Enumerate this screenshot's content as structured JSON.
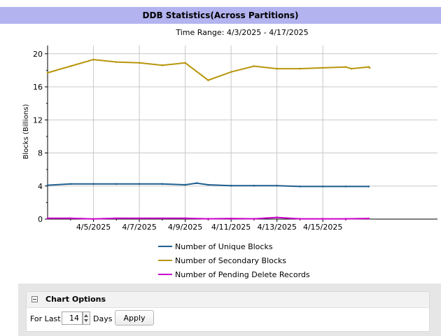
{
  "header": {
    "title": "DDB Statistics(Across Partitions)"
  },
  "chart_data": {
    "type": "line",
    "subtitle": "Time Range: 4/3/2025 - 4/17/2025",
    "ylabel": "Blocks (Billions)",
    "xlabel": "",
    "ylim": [
      0,
      21
    ],
    "yticks": [
      0,
      4,
      8,
      12,
      16,
      20
    ],
    "xlim": [
      "2025-04-03",
      "2025-04-20"
    ],
    "xticks": [
      {
        "date": "2025-04-04",
        "label": ""
      },
      {
        "date": "2025-04-05",
        "label": "4/5/2025"
      },
      {
        "date": "2025-04-06",
        "label": ""
      },
      {
        "date": "2025-04-07",
        "label": "4/7/2025"
      },
      {
        "date": "2025-04-08",
        "label": ""
      },
      {
        "date": "2025-04-09",
        "label": "4/9/2025"
      },
      {
        "date": "2025-04-10",
        "label": ""
      },
      {
        "date": "2025-04-11",
        "label": "4/11/2025"
      },
      {
        "date": "2025-04-12",
        "label": ""
      },
      {
        "date": "2025-04-13",
        "label": "4/13/2025"
      },
      {
        "date": "2025-04-14",
        "label": ""
      },
      {
        "date": "2025-04-15",
        "label": "4/15/2025"
      },
      {
        "date": "2025-04-16",
        "label": ""
      }
    ],
    "grid": true,
    "legend_position": "bottom",
    "series": [
      {
        "name": "Number of Unique Blocks",
        "color": "#1f5f8f",
        "x": [
          "2025-04-03",
          "2025-04-04",
          "2025-04-05",
          "2025-04-06",
          "2025-04-07",
          "2025-04-08",
          "2025-04-09",
          "2025-04-09T12:00",
          "2025-04-10",
          "2025-04-11",
          "2025-04-12",
          "2025-04-13",
          "2025-04-14",
          "2025-04-15",
          "2025-04-16",
          "2025-04-17"
        ],
        "y": [
          4.1,
          4.25,
          4.25,
          4.25,
          4.25,
          4.25,
          4.15,
          4.35,
          4.15,
          4.05,
          4.05,
          4.05,
          3.95,
          3.95,
          3.95,
          3.95
        ]
      },
      {
        "name": "Number of Secondary Blocks",
        "color": "#b8960c",
        "x": [
          "2025-04-03",
          "2025-04-04",
          "2025-04-05",
          "2025-04-06",
          "2025-04-07",
          "2025-04-08",
          "2025-04-09",
          "2025-04-10",
          "2025-04-11",
          "2025-04-12",
          "2025-04-13",
          "2025-04-14",
          "2025-04-15",
          "2025-04-16",
          "2025-04-16T06:00",
          "2025-04-17",
          "2025-04-17T01:00"
        ],
        "y": [
          17.7,
          18.5,
          19.3,
          19.0,
          18.9,
          18.6,
          18.9,
          16.8,
          17.8,
          18.5,
          18.2,
          18.2,
          18.3,
          18.4,
          18.2,
          18.4,
          18.3
        ]
      },
      {
        "name": "Number of Pending Delete Records",
        "color": "#cc00cc",
        "x": [
          "2025-04-03",
          "2025-04-04",
          "2025-04-05",
          "2025-04-06",
          "2025-04-07",
          "2025-04-08",
          "2025-04-09",
          "2025-04-10",
          "2025-04-11",
          "2025-04-12",
          "2025-04-13",
          "2025-04-14",
          "2025-04-15",
          "2025-04-16",
          "2025-04-17"
        ],
        "y": [
          0.1,
          0.1,
          0.02,
          0.1,
          0.1,
          0.1,
          0.1,
          0.03,
          0.08,
          0.03,
          0.2,
          0.03,
          0.03,
          0.03,
          0.08
        ]
      }
    ]
  },
  "chart_options": {
    "title": "Chart Options",
    "for_last_label": "For Last",
    "days_value": "14",
    "days_label": "Days",
    "apply_label": "Apply"
  }
}
